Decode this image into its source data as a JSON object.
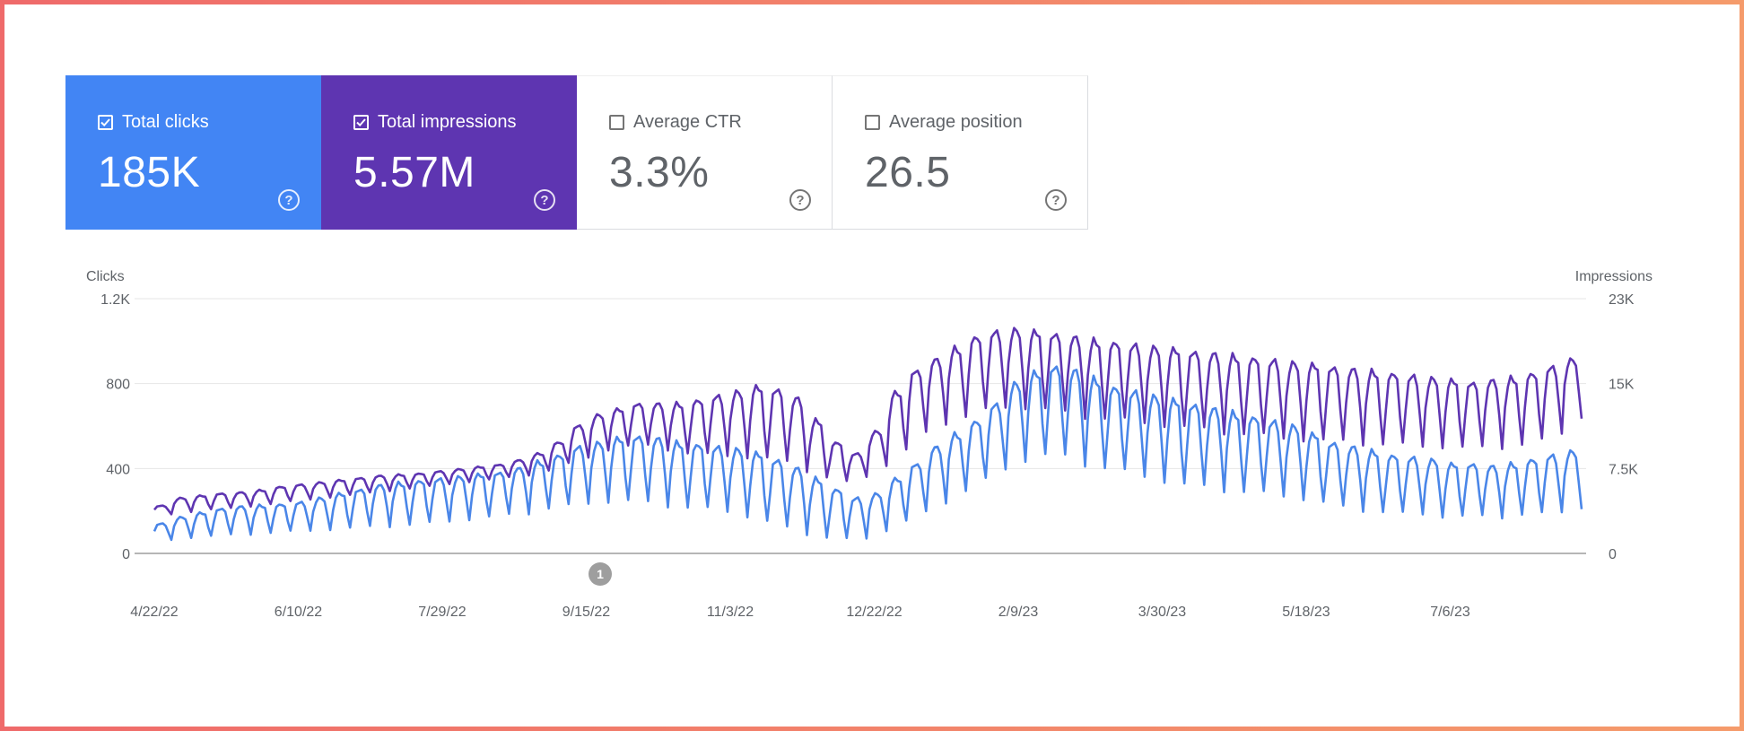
{
  "metrics": [
    {
      "id": "total-clicks",
      "label": "Total clicks",
      "value": "185K",
      "checked": true
    },
    {
      "id": "total-impressions",
      "label": "Total impressions",
      "value": "5.57M",
      "checked": true
    },
    {
      "id": "average-ctr",
      "label": "Average CTR",
      "value": "3.3%",
      "checked": false
    },
    {
      "id": "average-position",
      "label": "Average position",
      "value": "26.5",
      "checked": false
    }
  ],
  "help_glyph": "?",
  "colors": {
    "clicks": "#4a86e8",
    "impressions": "#5e35b1",
    "frame": "#f07a6a"
  },
  "chart_data": {
    "type": "line",
    "left_axis_title": "Clicks",
    "right_axis_title": "Impressions",
    "left_ticks": [
      "0",
      "400",
      "800",
      "1.2K"
    ],
    "right_ticks": [
      "0",
      "7.5K",
      "15K",
      "23K"
    ],
    "ylim_left": [
      0,
      1200
    ],
    "ylim_right": [
      0,
      23000
    ],
    "x_labels": [
      "4/22/22",
      "6/10/22",
      "7/29/22",
      "9/15/22",
      "11/3/22",
      "12/22/22",
      "2/9/23",
      "3/30/23",
      "5/18/23",
      "7/6/23"
    ],
    "annotation": {
      "label": "1",
      "date": "9/15/22"
    },
    "series": [
      {
        "name": "Clicks",
        "color": "#4a86e8",
        "axis": "left",
        "weekly_high": [
          140,
          170,
          190,
          210,
          220,
          225,
          230,
          240,
          260,
          280,
          300,
          320,
          330,
          340,
          350,
          360,
          370,
          380,
          400,
          430,
          460,
          500,
          520,
          540,
          550,
          540,
          520,
          510,
          500,
          490,
          470,
          440,
          400,
          350,
          300,
          260,
          280,
          350,
          420,
          500,
          560,
          620,
          700,
          800,
          850,
          880,
          860,
          820,
          780,
          760,
          740,
          720,
          700,
          680,
          660,
          640,
          620,
          600,
          560,
          520,
          500,
          480,
          460,
          450,
          440,
          420,
          420,
          410,
          420,
          440,
          460,
          480
        ],
        "weekly_low": [
          60,
          70,
          75,
          80,
          85,
          90,
          95,
          100,
          105,
          110,
          115,
          120,
          125,
          130,
          140,
          150,
          160,
          170,
          180,
          200,
          210,
          220,
          230,
          230,
          220,
          210,
          200,
          190,
          180,
          160,
          130,
          100,
          80,
          60,
          50,
          60,
          100,
          140,
          180,
          230,
          280,
          330,
          380,
          420,
          440,
          430,
          400,
          380,
          360,
          340,
          320,
          300,
          290,
          280,
          270,
          260,
          250,
          240,
          220,
          200,
          190,
          180,
          170,
          170,
          160,
          160,
          160,
          160,
          170,
          170,
          180,
          200
        ]
      },
      {
        "name": "Impressions",
        "color": "#5e35b1",
        "axis": "right",
        "weekly_high": [
          4300,
          5000,
          5200,
          5400,
          5500,
          5700,
          6000,
          6200,
          6400,
          6600,
          6800,
          7000,
          7100,
          7200,
          7400,
          7600,
          7800,
          8000,
          8400,
          9000,
          10000,
          11500,
          12500,
          13000,
          13500,
          13500,
          13500,
          13800,
          14200,
          14600,
          15000,
          14800,
          14000,
          12000,
          10000,
          9000,
          11000,
          14500,
          16500,
          17500,
          18500,
          19500,
          20000,
          20200,
          20000,
          19800,
          19500,
          19200,
          19000,
          18800,
          18600,
          18400,
          18200,
          18000,
          17800,
          17600,
          17400,
          17200,
          17000,
          16800,
          16600,
          16400,
          16200,
          16000,
          15800,
          15600,
          15400,
          15600,
          15800,
          16200,
          16800,
          17500
        ],
        "weekly_low": [
          3500,
          3700,
          3900,
          4000,
          4200,
          4400,
          4600,
          4800,
          5000,
          5200,
          5400,
          5600,
          5800,
          6000,
          6200,
          6400,
          6600,
          6800,
          7000,
          7400,
          8000,
          8500,
          9200,
          9500,
          9500,
          9200,
          8800,
          8600,
          8500,
          8400,
          8200,
          7800,
          7200,
          6600,
          6200,
          6800,
          7800,
          9000,
          10500,
          11500,
          12000,
          12500,
          12800,
          12800,
          12600,
          12300,
          12000,
          11800,
          11600,
          11400,
          11200,
          11000,
          10800,
          10600,
          10400,
          10200,
          10000,
          9900,
          9800,
          9700,
          9600,
          9500,
          9400,
          9300,
          9300,
          9200,
          9200,
          9300,
          9500,
          9800,
          10500,
          12000
        ]
      }
    ]
  }
}
